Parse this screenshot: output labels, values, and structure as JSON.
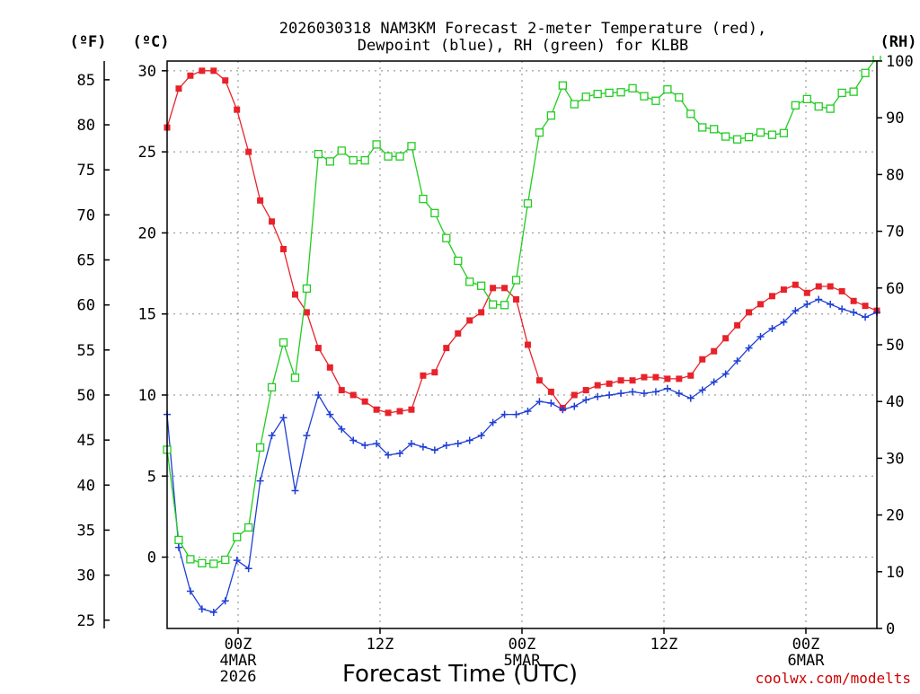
{
  "chart_data": {
    "type": "line",
    "title_lines": [
      "2026030318 NAM3KM Forecast 2-meter Temperature (red),",
      "Dewpoint (blue), RH (green) for KLBB"
    ],
    "xlabel": "Forecast Time (UTC)",
    "credit": "coolwx.com/modelts",
    "units": {
      "fahrenheit": "(ºF)",
      "celsius": "(ºC)",
      "rh": "(RH)"
    },
    "x_range_hours": [
      0,
      60
    ],
    "celsius_range": [
      -4.4,
      30.6
    ],
    "rh_range": [
      0,
      100
    ],
    "celsius_ticks": [
      "0",
      "5",
      "10",
      "15",
      "20",
      "25",
      "30"
    ],
    "fahrenheit_ticks": [
      "25",
      "30",
      "35",
      "40",
      "45",
      "50",
      "55",
      "60",
      "65",
      "70",
      "75",
      "80",
      "85"
    ],
    "rh_ticks": [
      "0",
      "10",
      "20",
      "30",
      "40",
      "50",
      "60",
      "70",
      "80",
      "90",
      "100"
    ],
    "x_ticks": [
      {
        "hour": 6,
        "lines": [
          "00Z",
          "4MAR",
          "2026"
        ]
      },
      {
        "hour": 18,
        "lines": [
          "12Z"
        ]
      },
      {
        "hour": 30,
        "lines": [
          "00Z",
          "5MAR"
        ]
      },
      {
        "hour": 42,
        "lines": [
          "12Z"
        ]
      },
      {
        "hour": 54,
        "lines": [
          "00Z",
          "6MAR"
        ]
      }
    ],
    "series": [
      {
        "name": "2-meter Temperature",
        "unit": "celsius",
        "color": "#e8222a",
        "marker": "filled-square",
        "values": [
          26.5,
          28.9,
          29.7,
          30.0,
          30.0,
          29.4,
          27.6,
          25.0,
          22.0,
          20.7,
          19.0,
          16.2,
          15.1,
          12.9,
          11.7,
          10.3,
          10.0,
          9.6,
          9.1,
          8.9,
          9.0,
          9.1,
          11.2,
          11.4,
          12.9,
          13.8,
          14.6,
          15.1,
          16.6,
          16.6,
          15.9,
          13.1,
          10.9,
          10.2,
          9.2,
          10.0,
          10.3,
          10.6,
          10.7,
          10.9,
          10.9,
          11.1,
          11.1,
          11.0,
          11.0,
          11.2,
          12.2,
          12.7,
          13.5,
          14.3,
          15.1,
          15.6,
          16.1,
          16.5,
          16.8,
          16.3,
          16.7,
          16.7,
          16.4,
          15.8,
          15.5,
          15.2
        ]
      },
      {
        "name": "Dewpoint",
        "unit": "celsius",
        "color": "#1f3fd6",
        "marker": "plus",
        "values": [
          8.8,
          0.6,
          -2.1,
          -3.2,
          -3.4,
          -2.7,
          -0.2,
          -0.7,
          4.7,
          7.5,
          8.6,
          4.1,
          7.5,
          10.0,
          8.8,
          7.9,
          7.2,
          6.9,
          7.0,
          6.3,
          6.4,
          7.0,
          6.8,
          6.6,
          6.9,
          7.0,
          7.2,
          7.5,
          8.3,
          8.8,
          8.8,
          9.0,
          9.6,
          9.5,
          9.1,
          9.3,
          9.7,
          9.9,
          10.0,
          10.1,
          10.2,
          10.1,
          10.2,
          10.4,
          10.1,
          9.8,
          10.3,
          10.8,
          11.3,
          12.1,
          12.9,
          13.6,
          14.1,
          14.5,
          15.2,
          15.6,
          15.9,
          15.6,
          15.3,
          15.1,
          14.8,
          15.1
        ]
      },
      {
        "name": "RH",
        "unit": "rh",
        "color": "#22cc22",
        "marker": "open-square",
        "values": [
          31.5,
          15.6,
          12.2,
          11.5,
          11.4,
          12.1,
          16.1,
          17.8,
          31.9,
          42.5,
          50.4,
          44.2,
          59.9,
          83.6,
          82.3,
          84.2,
          82.5,
          82.5,
          85.3,
          83.2,
          83.2,
          85.0,
          75.7,
          73.2,
          68.8,
          64.8,
          61.1,
          60.4,
          57.1,
          57.0,
          61.4,
          74.9,
          87.4,
          90.4,
          95.7,
          92.4,
          93.7,
          94.2,
          94.4,
          94.5,
          95.2,
          93.8,
          93.0,
          95.0,
          93.6,
          90.7,
          88.3,
          88.0,
          86.7,
          86.2,
          86.6,
          87.4,
          87.0,
          87.3,
          92.2,
          93.3,
          92.0,
          91.6,
          94.4,
          94.6,
          97.9,
          100.7
        ]
      }
    ]
  }
}
